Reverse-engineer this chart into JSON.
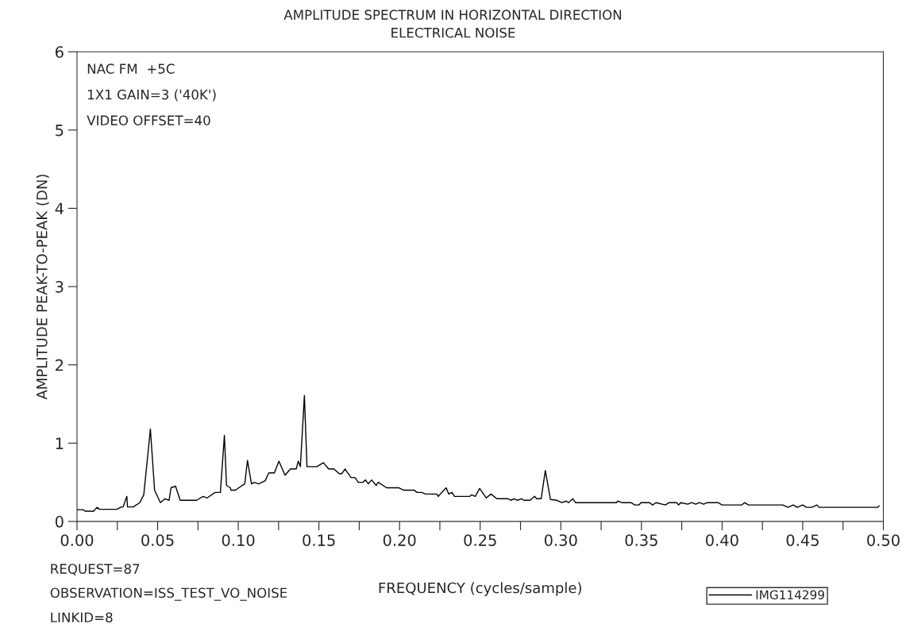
{
  "chart_data": {
    "type": "line",
    "title": "AMPLITUDE SPECTRUM IN HORIZONTAL DIRECTION",
    "subtitle": "ELECTRICAL NOISE",
    "xlabel": "FREQUENCY (cycles/sample)",
    "ylabel": "AMPLITUDE PEAK-TO-PEAK (DN)",
    "annotations": [
      "NAC FM  +5C",
      "1X1 GAIN=3 ('40K')",
      "VIDEO OFFSET=40",
      "REQUEST=87",
      "OBSERVATION=ISS_TEST_VO_NOISE",
      "LINKID=8"
    ],
    "xlim": [
      0,
      0.5
    ],
    "ylim": [
      0,
      6
    ],
    "xticks": [
      {
        "value": 0,
        "label": "0.00"
      },
      {
        "value": 0.025,
        "label": null
      },
      {
        "value": 0.05,
        "label": "0.05"
      },
      {
        "value": 0.075,
        "label": null
      },
      {
        "value": 0.1,
        "label": "0.10"
      },
      {
        "value": 0.125,
        "label": null
      },
      {
        "value": 0.15,
        "label": "0.15"
      },
      {
        "value": 0.175,
        "label": null
      },
      {
        "value": 0.2,
        "label": "0.20"
      },
      {
        "value": 0.225,
        "label": null
      },
      {
        "value": 0.25,
        "label": "0.25"
      },
      {
        "value": 0.275,
        "label": null
      },
      {
        "value": 0.3,
        "label": "0.30"
      },
      {
        "value": 0.325,
        "label": null
      },
      {
        "value": 0.35,
        "label": "0.35"
      },
      {
        "value": 0.375,
        "label": null
      },
      {
        "value": 0.4,
        "label": "0.40"
      },
      {
        "value": 0.425,
        "label": null
      },
      {
        "value": 0.45,
        "label": "0.45"
      },
      {
        "value": 0.475,
        "label": null
      },
      {
        "value": 0.5,
        "label": "0.50"
      }
    ],
    "yticks": [
      0,
      1,
      2,
      3,
      4,
      5,
      6
    ],
    "grid": false,
    "legend": "bottom right",
    "marker": "none",
    "line_style": "solid",
    "series": [
      {
        "name": "IMG114299",
        "color": "#000000",
        "x": [
          0.0,
          0.0038,
          0.0051,
          0.0103,
          0.0124,
          0.0139,
          0.0247,
          0.0275,
          0.0286,
          0.0309,
          0.0313,
          0.0349,
          0.0389,
          0.0414,
          0.0455,
          0.0481,
          0.0517,
          0.0545,
          0.0571,
          0.0583,
          0.0611,
          0.064,
          0.0742,
          0.0782,
          0.0807,
          0.0856,
          0.0889,
          0.0914,
          0.0927,
          0.0951,
          0.0954,
          0.0984,
          0.1003,
          0.104,
          0.1057,
          0.1082,
          0.1099,
          0.1126,
          0.1167,
          0.1189,
          0.1224,
          0.1252,
          0.129,
          0.1323,
          0.1359,
          0.1372,
          0.1385,
          0.141,
          0.1426,
          0.1487,
          0.1528,
          0.156,
          0.1593,
          0.1626,
          0.1642,
          0.1662,
          0.1699,
          0.1724,
          0.1744,
          0.1773,
          0.1789,
          0.1806,
          0.1827,
          0.1855,
          0.1868,
          0.192,
          0.1994,
          0.2024,
          0.2089,
          0.2109,
          0.2138,
          0.2161,
          0.2231,
          0.224,
          0.2289,
          0.2305,
          0.2325,
          0.2341,
          0.2436,
          0.2447,
          0.2469,
          0.2497,
          0.2538,
          0.2567,
          0.2603,
          0.2673,
          0.269,
          0.2711,
          0.2731,
          0.2756,
          0.2772,
          0.2809,
          0.2837,
          0.285,
          0.2878,
          0.2904,
          0.2936,
          0.2976,
          0.3006,
          0.3034,
          0.3047,
          0.3075,
          0.3091,
          0.3345,
          0.3353,
          0.3378,
          0.3435,
          0.3459,
          0.3484,
          0.3497,
          0.355,
          0.3569,
          0.359,
          0.3648,
          0.3672,
          0.3718,
          0.373,
          0.3743,
          0.3787,
          0.3811,
          0.3836,
          0.386,
          0.3885,
          0.391,
          0.3975,
          0.4,
          0.4122,
          0.4139,
          0.4164,
          0.4376,
          0.4409,
          0.4441,
          0.4466,
          0.4499,
          0.4524,
          0.4556,
          0.4589,
          0.4601,
          0.4966,
          0.4974
        ],
        "values": [
          0.15,
          0.15,
          0.13,
          0.13,
          0.18,
          0.155,
          0.155,
          0.185,
          0.185,
          0.32,
          0.185,
          0.185,
          0.24,
          0.34,
          1.18,
          0.4,
          0.24,
          0.29,
          0.27,
          0.43,
          0.45,
          0.27,
          0.27,
          0.32,
          0.3,
          0.37,
          0.37,
          1.1,
          0.46,
          0.43,
          0.4,
          0.4,
          0.43,
          0.48,
          0.78,
          0.48,
          0.5,
          0.48,
          0.52,
          0.62,
          0.62,
          0.77,
          0.59,
          0.67,
          0.67,
          0.77,
          0.7,
          1.61,
          0.7,
          0.7,
          0.75,
          0.67,
          0.67,
          0.61,
          0.61,
          0.67,
          0.56,
          0.56,
          0.5,
          0.5,
          0.53,
          0.48,
          0.53,
          0.46,
          0.5,
          0.43,
          0.43,
          0.4,
          0.4,
          0.37,
          0.37,
          0.35,
          0.35,
          0.32,
          0.43,
          0.35,
          0.37,
          0.32,
          0.32,
          0.34,
          0.32,
          0.42,
          0.3,
          0.35,
          0.29,
          0.29,
          0.27,
          0.29,
          0.27,
          0.29,
          0.27,
          0.27,
          0.32,
          0.29,
          0.29,
          0.65,
          0.28,
          0.27,
          0.24,
          0.26,
          0.24,
          0.29,
          0.24,
          0.24,
          0.26,
          0.24,
          0.24,
          0.21,
          0.21,
          0.24,
          0.24,
          0.21,
          0.24,
          0.21,
          0.24,
          0.24,
          0.21,
          0.24,
          0.22,
          0.24,
          0.22,
          0.24,
          0.22,
          0.24,
          0.24,
          0.21,
          0.21,
          0.24,
          0.21,
          0.21,
          0.18,
          0.21,
          0.18,
          0.21,
          0.18,
          0.18,
          0.21,
          0.18,
          0.18,
          0.2
        ]
      }
    ]
  }
}
